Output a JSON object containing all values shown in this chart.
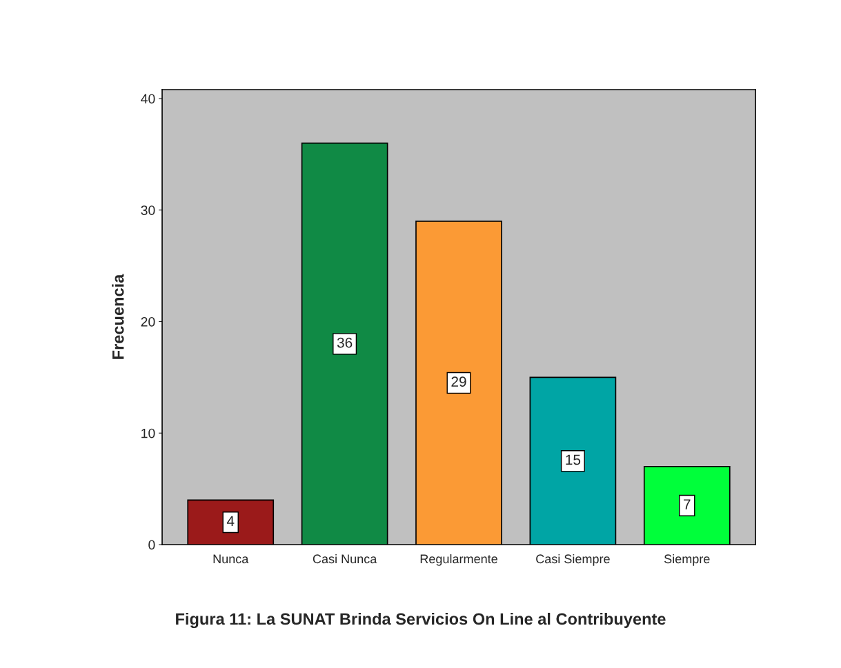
{
  "chart_data": {
    "type": "bar",
    "title": "Figura 11: La SUNAT Brinda Servicios On Line al Contribuyente",
    "ylabel": "Frecuencia",
    "categories": [
      "Nunca",
      "Casi Nunca",
      "Regularmente",
      "Casi Siempre",
      "Siempre"
    ],
    "values": [
      4,
      36,
      29,
      15,
      7
    ],
    "colors": [
      "#9b1a1a",
      "#108a45",
      "#fb9a35",
      "#00a5a5",
      "#00ff3a"
    ],
    "ylim": [
      0,
      40.8
    ],
    "yticks": [
      0,
      10,
      20,
      30,
      40
    ],
    "data_labels": true,
    "grid": false,
    "legend": false
  }
}
